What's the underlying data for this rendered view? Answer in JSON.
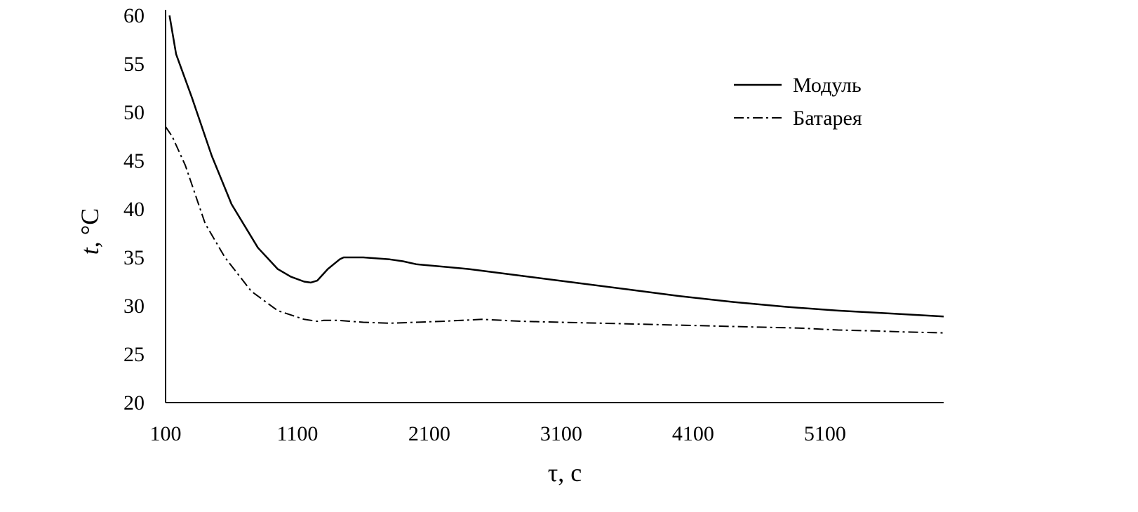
{
  "chart_data": {
    "type": "line",
    "title": "",
    "xlabel": "τ, с",
    "ylabel_italic": "t",
    "ylabel_rest": ", °С",
    "xlim": [
      100,
      6000
    ],
    "ylim": [
      20,
      60
    ],
    "x_ticks": [
      100,
      1100,
      2100,
      3100,
      4100,
      5100
    ],
    "x_tick_labels": [
      "100",
      "1100",
      "2100",
      "3100",
      "4100",
      "5100"
    ],
    "y_ticks": [
      20,
      25,
      30,
      35,
      40,
      45,
      50,
      55,
      60
    ],
    "y_tick_labels": [
      "20",
      "25",
      "30",
      "35",
      "40",
      "45",
      "50",
      "55",
      "60"
    ],
    "grid": false,
    "legend_position": "top-right",
    "series": [
      {
        "name": "Модуль",
        "style": "solid",
        "x": [
          130,
          180,
          300,
          450,
          600,
          800,
          950,
          1050,
          1150,
          1200,
          1250,
          1330,
          1420,
          1450,
          1500,
          1550,
          1600,
          1700,
          1800,
          1900,
          2000,
          2400,
          2800,
          3200,
          3600,
          4000,
          4400,
          4800,
          5200,
          5600,
          6000
        ],
        "y": [
          60,
          56,
          51.5,
          45.5,
          40.5,
          36,
          33.8,
          33,
          32.5,
          32.4,
          32.6,
          33.8,
          34.8,
          35,
          35,
          35,
          35,
          34.9,
          34.8,
          34.6,
          34.3,
          33.8,
          33.1,
          32.4,
          31.7,
          31,
          30.4,
          29.9,
          29.5,
          29.2,
          28.9
        ]
      },
      {
        "name": "Батарея",
        "style": "dash-dot",
        "x": [
          100,
          150,
          250,
          400,
          550,
          750,
          950,
          1150,
          1250,
          1300,
          1400,
          1600,
          1800,
          2000,
          2200,
          2500,
          2800,
          3100,
          3400,
          3700,
          4000,
          4300,
          4600,
          4900,
          5200,
          5500,
          5700,
          6000
        ],
        "y": [
          48.5,
          47.5,
          44.5,
          38.5,
          35,
          31.5,
          29.5,
          28.6,
          28.4,
          28.5,
          28.5,
          28.3,
          28.2,
          28.3,
          28.4,
          28.6,
          28.4,
          28.3,
          28.2,
          28.1,
          28.0,
          27.9,
          27.8,
          27.7,
          27.5,
          27.4,
          27.3,
          27.2
        ]
      }
    ]
  }
}
